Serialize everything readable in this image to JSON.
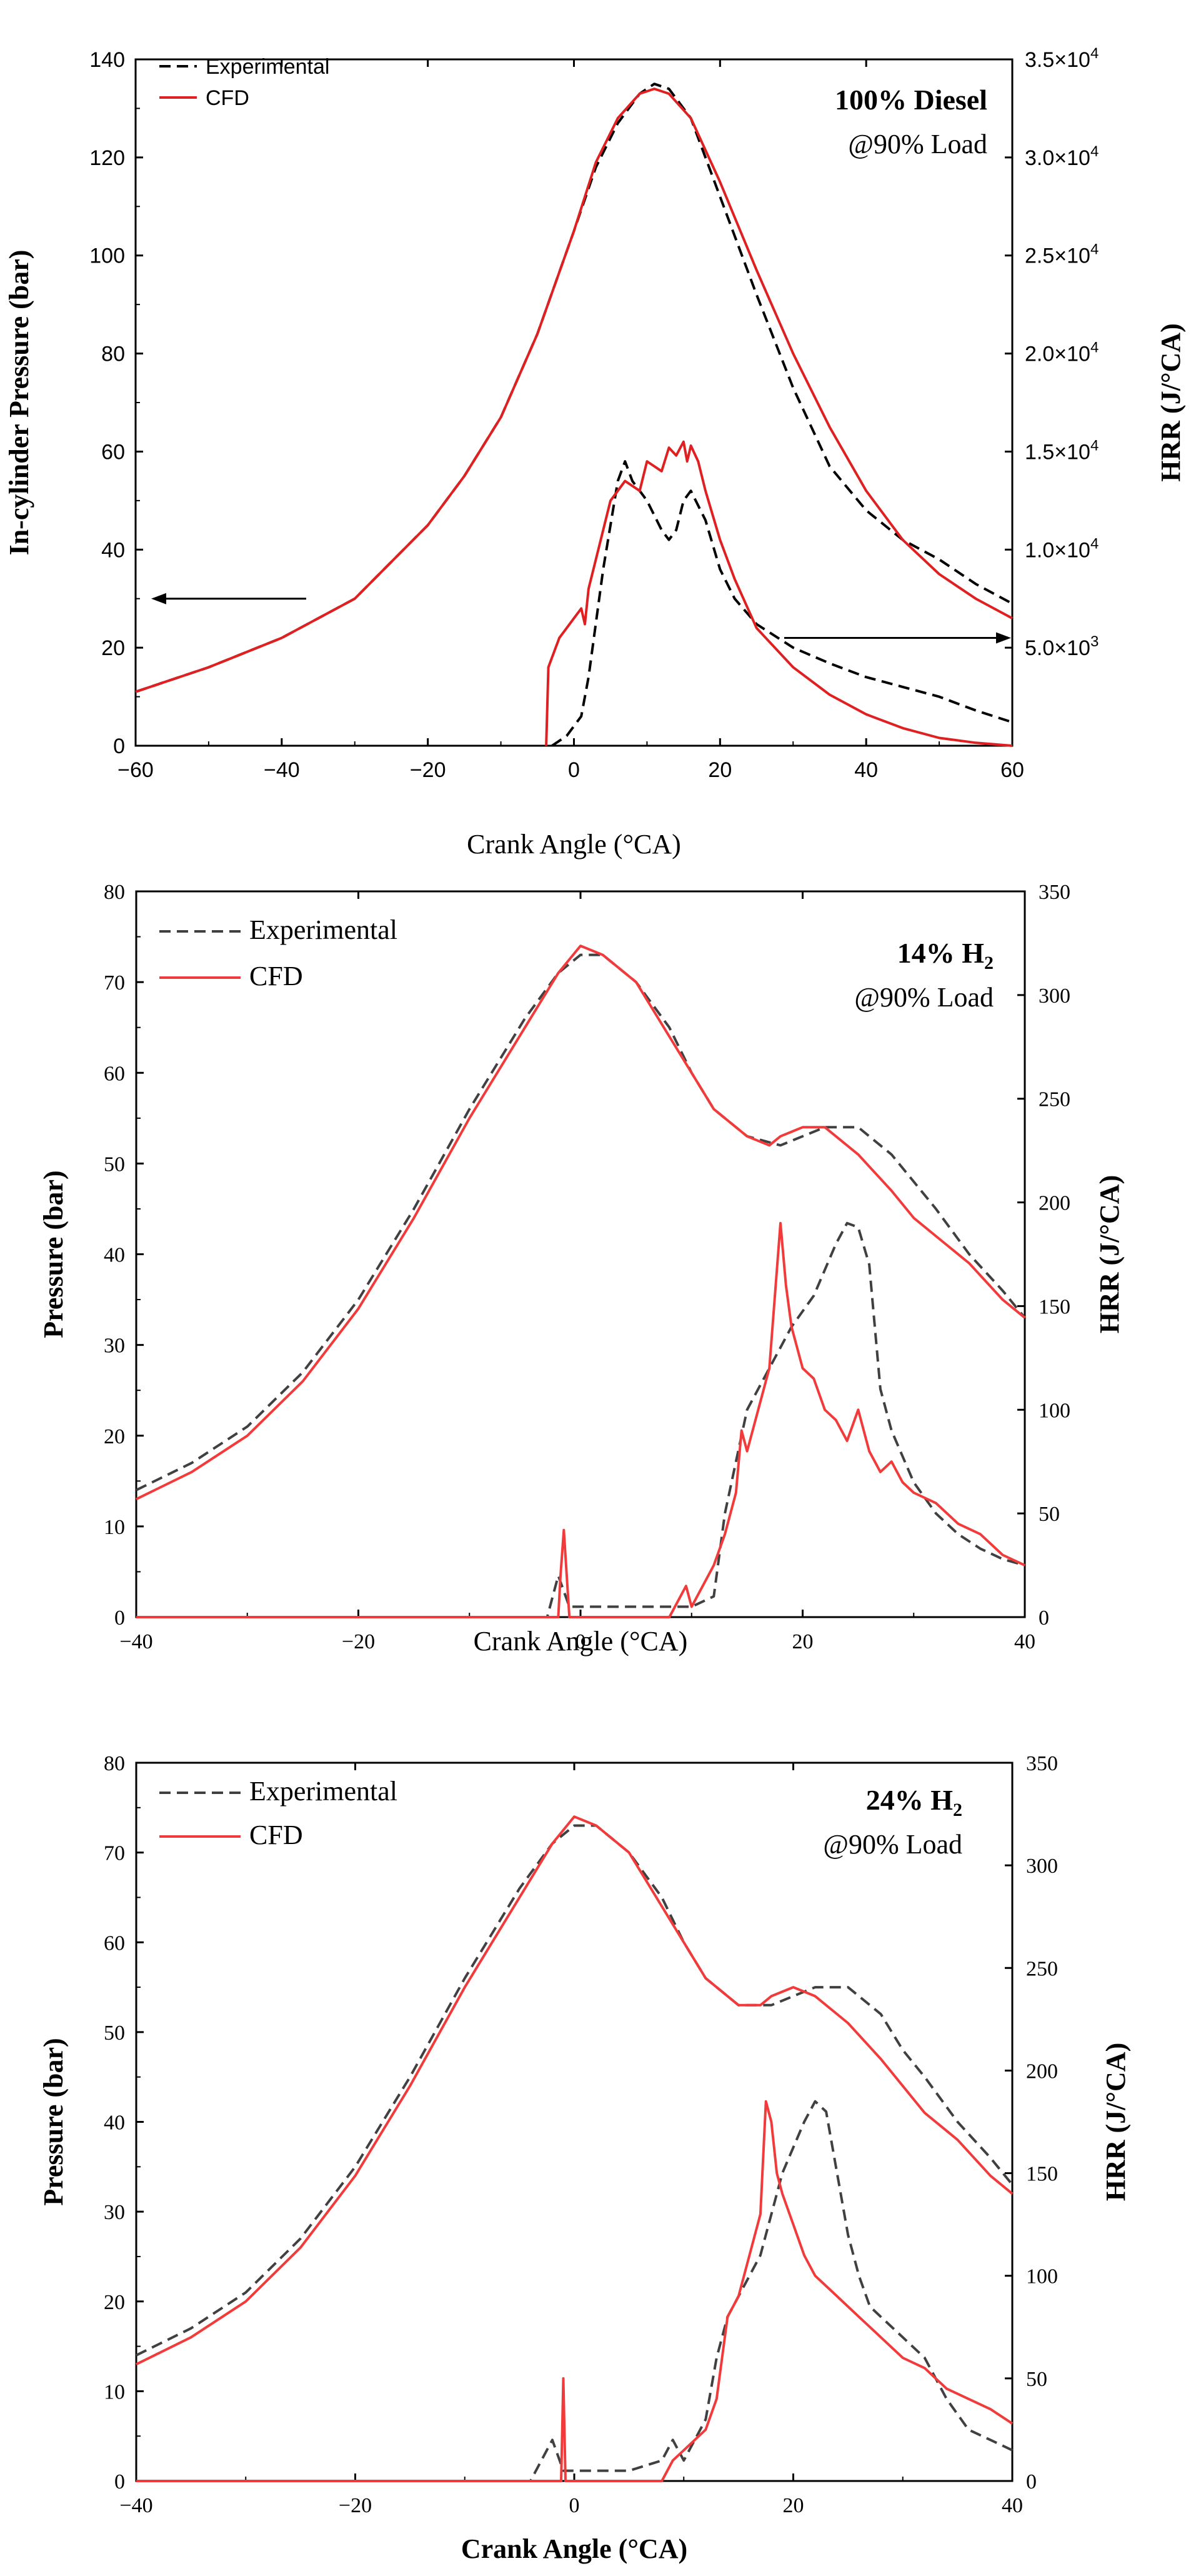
{
  "chart_data": [
    {
      "type": "line",
      "title": "100% Diesel",
      "subtitle": "@90% Load",
      "xlabel": "Crank Angle (°CA)",
      "ylabel": "In-cylinder Pressure (bar)",
      "ylabel_right": "HRR (J/°CA)",
      "xlim": [
        -60,
        60
      ],
      "ylim": [
        0,
        140
      ],
      "ylim_right": [
        0,
        35000
      ],
      "xticks": [
        "−60",
        "−40",
        "−20",
        "0",
        "20",
        "40",
        "60"
      ],
      "yticks": [
        "0",
        "20",
        "40",
        "60",
        "80",
        "100",
        "120",
        "140"
      ],
      "yticks_right": [
        {
          "mantissa": "5.0×10",
          "exp": "3",
          "value": 5000
        },
        {
          "mantissa": "1.0×10",
          "exp": "4",
          "value": 10000
        },
        {
          "mantissa": "1.5×10",
          "exp": "4",
          "value": 15000
        },
        {
          "mantissa": "2.0×10",
          "exp": "4",
          "value": 20000
        },
        {
          "mantissa": "2.5×10",
          "exp": "4",
          "value": 25000
        },
        {
          "mantissa": "3.0×10",
          "exp": "4",
          "value": 30000
        },
        {
          "mantissa": "3.5×10",
          "exp": "4",
          "value": 35000
        }
      ],
      "legend": {
        "position": "top-left",
        "entries": [
          "Experimental",
          "CFD"
        ]
      },
      "series": [
        {
          "name": "Experimental",
          "kind": "pressure",
          "axis": "left",
          "style": "dashed",
          "color": "#000000",
          "x": [
            -60,
            -50,
            -40,
            -30,
            -20,
            -15,
            -10,
            -5,
            0,
            3,
            6,
            9,
            11,
            13,
            16,
            20,
            25,
            30,
            35,
            40,
            45,
            50,
            55,
            60
          ],
          "y": [
            11,
            16,
            22,
            30,
            45,
            55,
            67,
            84,
            105,
            118,
            127,
            133,
            135,
            134,
            128,
            112,
            92,
            73,
            57,
            48,
            42,
            38,
            33,
            29
          ]
        },
        {
          "name": "CFD",
          "kind": "pressure",
          "axis": "left",
          "style": "solid",
          "color": "#e02020",
          "x": [
            -60,
            -50,
            -40,
            -30,
            -20,
            -15,
            -10,
            -5,
            0,
            3,
            6,
            9,
            11,
            13,
            16,
            20,
            25,
            30,
            35,
            40,
            45,
            50,
            55,
            60
          ],
          "y": [
            11,
            16,
            22,
            30,
            45,
            55,
            67,
            84,
            105,
            119,
            128,
            133,
            134,
            133,
            128,
            115,
            97,
            80,
            65,
            52,
            42,
            35,
            30,
            26
          ]
        },
        {
          "name": "Experimental",
          "kind": "hrr",
          "axis": "right",
          "style": "dashed",
          "color": "#000000",
          "x": [
            -3,
            -1,
            1,
            2,
            4,
            6,
            7,
            8,
            10,
            12,
            13,
            14,
            15,
            16,
            18,
            20,
            22,
            25,
            30,
            35,
            40,
            45,
            50,
            55,
            60
          ],
          "y": [
            0,
            500,
            1500,
            3500,
            9000,
            13500,
            14500,
            13500,
            12500,
            11000,
            10500,
            11000,
            12500,
            13000,
            11500,
            9000,
            7500,
            6200,
            5000,
            4200,
            3500,
            3000,
            2500,
            1800,
            1200
          ]
        },
        {
          "name": "CFD",
          "kind": "hrr",
          "axis": "right",
          "style": "solid",
          "color": "#e02020",
          "x": [
            -3.8,
            -3.5,
            -3,
            -2,
            -1,
            0,
            1,
            1.5,
            2,
            3,
            5,
            7,
            9,
            10,
            12,
            13,
            14,
            15,
            15.5,
            16,
            17,
            18,
            20,
            22,
            25,
            30,
            35,
            40,
            45,
            50,
            55,
            60
          ],
          "y": [
            0,
            4000,
            4500,
            5500,
            6000,
            6500,
            7000,
            6200,
            8000,
            9500,
            12500,
            13500,
            13000,
            14500,
            14000,
            15200,
            14800,
            15500,
            14500,
            15300,
            14500,
            13000,
            10500,
            8500,
            6000,
            4000,
            2600,
            1600,
            900,
            400,
            150,
            0
          ]
        }
      ]
    },
    {
      "type": "line",
      "title": "14% H",
      "title_subscript": "2",
      "subtitle": "@90% Load",
      "xlabel": "Crank Angle (°CA)",
      "ylabel": "Pressure (bar)",
      "ylabel_right": "HRR (J/°CA)",
      "xlim": [
        -40,
        40
      ],
      "ylim": [
        0,
        80
      ],
      "ylim_right": [
        0,
        350
      ],
      "xticks": [
        "−40",
        "−20",
        "0",
        "20",
        "40"
      ],
      "yticks": [
        "0",
        "10",
        "20",
        "30",
        "40",
        "50",
        "60",
        "70",
        "80"
      ],
      "yticks_right": [
        "0",
        "50",
        "100",
        "150",
        "200",
        "250",
        "300",
        "350"
      ],
      "legend": {
        "position": "top-left",
        "entries": [
          "Experimental",
          "CFD"
        ]
      },
      "series": [
        {
          "name": "Experimental",
          "kind": "pressure",
          "axis": "left",
          "style": "dashed",
          "color": "#404040",
          "x": [
            -40,
            -35,
            -30,
            -25,
            -20,
            -15,
            -10,
            -5,
            -2,
            0,
            2,
            5,
            8,
            10,
            12,
            15,
            18,
            20,
            22,
            25,
            28,
            30,
            32,
            35,
            38,
            40
          ],
          "y": [
            14,
            17,
            21,
            27,
            35,
            45,
            56,
            66,
            71,
            73,
            73,
            70,
            65,
            60,
            56,
            53,
            52,
            53,
            54,
            54,
            51,
            48,
            45,
            40,
            36,
            33
          ]
        },
        {
          "name": "CFD",
          "kind": "pressure",
          "axis": "left",
          "style": "solid",
          "color": "#f23a3a",
          "x": [
            -40,
            -35,
            -30,
            -25,
            -20,
            -15,
            -10,
            -5,
            -2,
            0,
            2,
            5,
            8,
            10,
            12,
            15,
            17,
            18,
            20,
            22,
            25,
            28,
            30,
            32,
            35,
            38,
            40
          ],
          "y": [
            13,
            16,
            20,
            26,
            34,
            44,
            55,
            65,
            71,
            74,
            73,
            70,
            64,
            60,
            56,
            53,
            52,
            53,
            54,
            54,
            51,
            47,
            44,
            42,
            39,
            35,
            33
          ]
        },
        {
          "name": "Experimental",
          "kind": "hrr",
          "axis": "right",
          "style": "dashed",
          "color": "#404040",
          "x": [
            -40,
            -3,
            -2,
            -1,
            0,
            5,
            8,
            10,
            12,
            13,
            14,
            15,
            17,
            19,
            21,
            23,
            24,
            25,
            26,
            27,
            28,
            30,
            32,
            34,
            36,
            38,
            40
          ],
          "y": [
            0,
            0,
            20,
            5,
            5,
            5,
            5,
            5,
            10,
            50,
            75,
            100,
            120,
            140,
            155,
            180,
            190,
            188,
            170,
            110,
            90,
            65,
            50,
            40,
            33,
            28,
            25
          ]
        },
        {
          "name": "CFD",
          "kind": "hrr",
          "axis": "right",
          "style": "solid",
          "color": "#f23a3a",
          "x": [
            -40,
            -2,
            -1.8,
            -1.5,
            -1,
            0,
            8,
            9,
            9.5,
            10,
            12,
            13,
            14,
            14.5,
            15,
            16,
            17,
            18,
            18.5,
            19,
            20,
            21,
            22,
            23,
            24,
            25,
            26,
            27,
            28,
            29,
            30,
            32,
            34,
            36,
            38,
            40
          ],
          "y": [
            0,
            0,
            20,
            42,
            0,
            0,
            0,
            10,
            15,
            5,
            25,
            40,
            60,
            90,
            80,
            100,
            120,
            190,
            160,
            140,
            120,
            115,
            100,
            95,
            85,
            100,
            80,
            70,
            75,
            65,
            60,
            55,
            45,
            40,
            30,
            25
          ]
        }
      ]
    },
    {
      "type": "line",
      "title": "24% H",
      "title_subscript": "2",
      "subtitle": "@90% Load",
      "xlabel": "Crank Angle (°CA)",
      "ylabel": "Pressure (bar)",
      "ylabel_right": "HRR (J/°CA)",
      "xlim": [
        -40,
        40
      ],
      "ylim": [
        0,
        80
      ],
      "ylim_right": [
        0,
        350
      ],
      "xticks": [
        "−40",
        "−20",
        "0",
        "20",
        "40"
      ],
      "yticks": [
        "0",
        "10",
        "20",
        "30",
        "40",
        "50",
        "60",
        "70",
        "80"
      ],
      "yticks_right": [
        "0",
        "50",
        "100",
        "150",
        "200",
        "250",
        "300",
        "350"
      ],
      "legend": {
        "position": "top-left",
        "entries": [
          "Experimental",
          "CFD"
        ]
      },
      "series": [
        {
          "name": "Experimental",
          "kind": "pressure",
          "axis": "left",
          "style": "dashed",
          "color": "#404040",
          "x": [
            -40,
            -35,
            -30,
            -25,
            -20,
            -15,
            -10,
            -5,
            -2,
            0,
            2,
            5,
            8,
            10,
            12,
            15,
            18,
            20,
            22,
            25,
            28,
            30,
            32,
            35,
            38,
            40
          ],
          "y": [
            14,
            17,
            21,
            27,
            35,
            45,
            56,
            66,
            71,
            73,
            73,
            70,
            65,
            60,
            56,
            53,
            53,
            54,
            55,
            55,
            52,
            48,
            45,
            40,
            36,
            33
          ]
        },
        {
          "name": "CFD",
          "kind": "pressure",
          "axis": "left",
          "style": "solid",
          "color": "#f23a3a",
          "x": [
            -40,
            -35,
            -30,
            -25,
            -20,
            -15,
            -10,
            -5,
            -2,
            0,
            2,
            5,
            8,
            10,
            12,
            15,
            17,
            18,
            20,
            22,
            25,
            28,
            30,
            32,
            35,
            38,
            40
          ],
          "y": [
            13,
            16,
            20,
            26,
            34,
            44,
            55,
            65,
            71,
            74,
            73,
            70,
            64,
            60,
            56,
            53,
            53,
            54,
            55,
            54,
            51,
            47,
            44,
            41,
            38,
            34,
            32
          ]
        },
        {
          "name": "Experimental",
          "kind": "hrr",
          "axis": "right",
          "style": "dashed",
          "color": "#404040",
          "x": [
            -40,
            -4,
            -3,
            -2,
            -1,
            0,
            5,
            8,
            9,
            10,
            12,
            13,
            14,
            15,
            17,
            19,
            21,
            22,
            23,
            24,
            25,
            26,
            27,
            28,
            30,
            32,
            34,
            36,
            38,
            40
          ],
          "y": [
            0,
            0,
            10,
            20,
            5,
            5,
            5,
            10,
            20,
            10,
            30,
            60,
            80,
            90,
            110,
            150,
            175,
            185,
            180,
            150,
            120,
            100,
            85,
            80,
            70,
            60,
            40,
            25,
            20,
            15
          ]
        },
        {
          "name": "CFD",
          "kind": "hrr",
          "axis": "right",
          "style": "solid",
          "color": "#f23a3a",
          "x": [
            -40,
            -1.2,
            -1,
            -0.8,
            -0.5,
            8,
            9,
            10,
            12,
            13,
            14,
            15,
            16,
            17,
            17.5,
            18,
            18.5,
            19,
            20,
            21,
            22,
            23,
            24,
            25,
            26,
            27,
            28,
            29,
            30,
            32,
            34,
            36,
            38,
            40
          ],
          "y": [
            0,
            0,
            50,
            0,
            0,
            0,
            10,
            15,
            25,
            40,
            80,
            90,
            110,
            130,
            185,
            175,
            150,
            140,
            125,
            110,
            100,
            95,
            90,
            85,
            80,
            75,
            70,
            65,
            60,
            55,
            45,
            40,
            35,
            28
          ]
        }
      ]
    }
  ]
}
